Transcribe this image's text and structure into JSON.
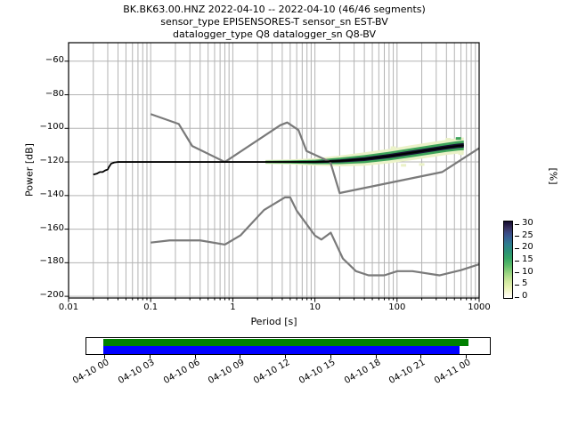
{
  "title": {
    "line1": "BK.BK63.00.HNZ   2022-04-10 -- 2022-04-10  (46/46 segments)",
    "line2": "sensor_type EPISENSORES-T sensor_sn EST-BV",
    "line3": "datalogger_type Q8 datalogger_sn Q8-BV"
  },
  "axes": {
    "xlabel": "Period [s]",
    "ylabel": "Power [dB]",
    "right_label": "[%]"
  },
  "chart_data": {
    "type": "heatmap",
    "title": "BK.BK63.00.HNZ 2022-04-10 -- 2022-04-10 (46/46 segments)",
    "xlabel": "Period [s]",
    "ylabel": "Power [dB]",
    "xscale": "log",
    "xlim": [
      0.01,
      1000
    ],
    "ylim": [
      -201,
      -49
    ],
    "grid": true,
    "xticks": [
      0.01,
      0.1,
      1,
      10,
      100,
      1000
    ],
    "xtick_labels": [
      "0.01",
      "0.1",
      "1",
      "10",
      "100",
      "1000"
    ],
    "yticks": [
      -60,
      -80,
      -100,
      -120,
      -140,
      -160,
      -180,
      -200
    ],
    "ytick_labels": [
      "−60",
      "−80",
      "−100",
      "−120",
      "−140",
      "−160",
      "−180",
      "−200"
    ],
    "colorbar": {
      "label": "[%]",
      "vmin": 0,
      "vmax": 31.5,
      "ticks": [
        0,
        5,
        10,
        15,
        20,
        25,
        30
      ],
      "gradient_stops": [
        [
          0.0,
          "#ffffff"
        ],
        [
          0.05,
          "#fbfae3"
        ],
        [
          0.13,
          "#eaf3b7"
        ],
        [
          0.22,
          "#cfe89e"
        ],
        [
          0.32,
          "#9cd583"
        ],
        [
          0.42,
          "#5fbc6a"
        ],
        [
          0.52,
          "#34a465"
        ],
        [
          0.62,
          "#2b8e78"
        ],
        [
          0.7,
          "#2d7d8e"
        ],
        [
          0.78,
          "#356292"
        ],
        [
          0.85,
          "#3a4a85"
        ],
        [
          0.91,
          "#38335f"
        ],
        [
          0.96,
          "#241b44"
        ],
        [
          1.0,
          "#130c2d"
        ]
      ]
    },
    "noise_models": {
      "color": "#7a7a7a",
      "nhnm": [
        [
          0.1,
          -91.5
        ],
        [
          0.22,
          -97.4
        ],
        [
          0.32,
          -110.5
        ],
        [
          0.8,
          -120.0
        ],
        [
          3.8,
          -98.1
        ],
        [
          4.6,
          -96.5
        ],
        [
          6.3,
          -101.0
        ],
        [
          7.9,
          -113.5
        ],
        [
          15.4,
          -120.0
        ],
        [
          20.0,
          -138.5
        ],
        [
          354.8,
          -126.0
        ],
        [
          1000,
          -111.8
        ]
      ],
      "nlnm": [
        [
          0.1,
          -168.0
        ],
        [
          0.17,
          -166.7
        ],
        [
          0.4,
          -166.7
        ],
        [
          0.8,
          -169.2
        ],
        [
          1.24,
          -163.7
        ],
        [
          2.4,
          -148.6
        ],
        [
          4.3,
          -141.1
        ],
        [
          5.0,
          -141.1
        ],
        [
          6.0,
          -149.0
        ],
        [
          10.0,
          -163.8
        ],
        [
          12.0,
          -166.2
        ],
        [
          15.6,
          -162.1
        ],
        [
          21.9,
          -177.5
        ],
        [
          31.6,
          -185.0
        ],
        [
          45.0,
          -187.5
        ],
        [
          70.0,
          -187.5
        ],
        [
          101.0,
          -185.0
        ],
        [
          154.0,
          -185.0
        ],
        [
          328.0,
          -187.5
        ],
        [
          600.0,
          -184.4
        ],
        [
          1000,
          -180.9
        ]
      ]
    },
    "mode_line": {
      "color": "#000000",
      "points": [
        [
          0.02,
          -127.5
        ],
        [
          0.022,
          -127.0
        ],
        [
          0.024,
          -126.0
        ],
        [
          0.026,
          -126.0
        ],
        [
          0.028,
          -125.0
        ],
        [
          0.03,
          -124.5
        ],
        [
          0.031,
          -123.0
        ],
        [
          0.033,
          -121.0
        ],
        [
          0.036,
          -120.3
        ],
        [
          0.04,
          -120.0
        ],
        [
          10,
          -120.0
        ],
        [
          20,
          -119.4
        ],
        [
          40,
          -118.3
        ],
        [
          80,
          -116.5
        ],
        [
          150,
          -114.5
        ],
        [
          250,
          -112.8
        ],
        [
          400,
          -111.3
        ],
        [
          550,
          -110.4
        ],
        [
          650,
          -110.1
        ]
      ]
    },
    "histogram_band": {
      "x": [
        2.5,
        5,
        10,
        20,
        40,
        80,
        150,
        250,
        400,
        550,
        650
      ],
      "center_db": [
        -120,
        -120,
        -120,
        -119.4,
        -118.3,
        -116.5,
        -114.5,
        -112.8,
        -111.3,
        -110.4,
        -110.1
      ],
      "half_spread_db": [
        1.2,
        1.5,
        2.2,
        3.2,
        4.0,
        4.3,
        4.5,
        4.5,
        4.5,
        4.7,
        4.7
      ],
      "layers": [
        {
          "percent_level": "low",
          "color": "#ebf2c8",
          "factor": 1.0
        },
        {
          "percent_level": "mid",
          "color": "#3ea45b",
          "factor": 0.6
        },
        {
          "percent_level": "high",
          "color": "#151031",
          "factor": 0.28
        }
      ]
    },
    "outlier_cells": [
      {
        "period": 120,
        "db": -122.0,
        "color": "#ebf2c8"
      },
      {
        "period": 200,
        "db": -121.5,
        "color": "#ebf2c8"
      },
      {
        "period": 90,
        "db": -111.5,
        "color": "#ebf2c8"
      },
      {
        "period": 420,
        "db": -106.5,
        "color": "#ebf2c8"
      },
      {
        "period": 560,
        "db": -106.0,
        "color": "#3ea45b"
      },
      {
        "period": 600,
        "db": -115.0,
        "color": "#ebf2c8"
      }
    ],
    "grid_color": "#b3b3b3"
  },
  "timeline": {
    "type": "bar",
    "tick_labels": [
      "04-10 00",
      "04-10 03",
      "04-10 06",
      "04-10 09",
      "04-10 12",
      "04-10 15",
      "04-10 18",
      "04-10 21",
      "04-11 00"
    ],
    "bars": [
      {
        "color": "#008000",
        "start_frac": 0.0418,
        "end_frac": 0.943,
        "row": "top"
      },
      {
        "color": "#0000ff",
        "start_frac": 0.0418,
        "end_frac": 0.921,
        "row": "bottom"
      }
    ]
  }
}
